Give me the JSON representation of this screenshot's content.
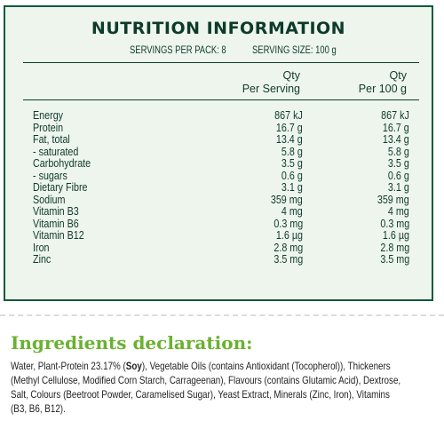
{
  "nutrition": {
    "title": "NUTRITION INFORMATION",
    "servings_per_pack": "SERVINGS PER PACK: 8",
    "serving_size": "SERVING SIZE: 100 g",
    "col1_line1": "Qty",
    "col1_line2": "Per Serving",
    "col2_line1": "Qty",
    "col2_line2": "Per 100 g",
    "rows": [
      {
        "label": "Energy",
        "per_serving": "867 kJ",
        "per_100g": "867 kJ"
      },
      {
        "label": "Protein",
        "per_serving": "16.7 g",
        "per_100g": "16.7 g"
      },
      {
        "label": "Fat, total",
        "per_serving": "13.4 g",
        "per_100g": "13.4 g"
      },
      {
        "label": "- saturated",
        "per_serving": "5.8 g",
        "per_100g": "5.8 g"
      },
      {
        "label": "Carbohydrate",
        "per_serving": "3.5 g",
        "per_100g": "3.5 g"
      },
      {
        "label": "- sugars",
        "per_serving": "0.6 g",
        "per_100g": "0.6 g"
      },
      {
        "label": "Dietary Fibre",
        "per_serving": "3.1 g",
        "per_100g": "3.1 g"
      },
      {
        "label": "Sodium",
        "per_serving": "359 mg",
        "per_100g": "359 mg"
      },
      {
        "label": "Vitamin B3",
        "per_serving": "4 mg",
        "per_100g": "4 mg"
      },
      {
        "label": "Vitamin B6",
        "per_serving": "0.3 mg",
        "per_100g": "0.3 mg"
      },
      {
        "label": "Vitamin B12",
        "per_serving": "1.6 µg",
        "per_100g": "1.6 µg"
      },
      {
        "label": "Iron",
        "per_serving": "2.8 mg",
        "per_100g": "2.8 mg"
      },
      {
        "label": "Zinc",
        "per_serving": "3.5 mg",
        "per_100g": "3.5 mg"
      }
    ]
  },
  "ingredients": {
    "title": "Ingredients declaration:",
    "segments": [
      {
        "text": "Water, Plant-Protein 23.17% (",
        "bold": false
      },
      {
        "text": "Soy",
        "bold": true
      },
      {
        "text": "), Vegetable Oils (contains Antioxidant (Tocopherol)), Thickeners (Methyl Cellulose, Modified Corn Starch, Carrageenan), Flavours (contains Glutamic Acid), Dextrose, Salt, Colours (Beetroot Powder, Caramelised Sugar), Yeast Extract, Minerals (Zinc, Iron), Vitamins (B3, B6, B12).",
        "bold": false
      }
    ]
  },
  "colors": {
    "panel_bg": "#eef5ec",
    "panel_border": "#0f5a3c",
    "text_dark_green": "#0d3b2a",
    "ingredients_title_green": "#6ab130"
  }
}
